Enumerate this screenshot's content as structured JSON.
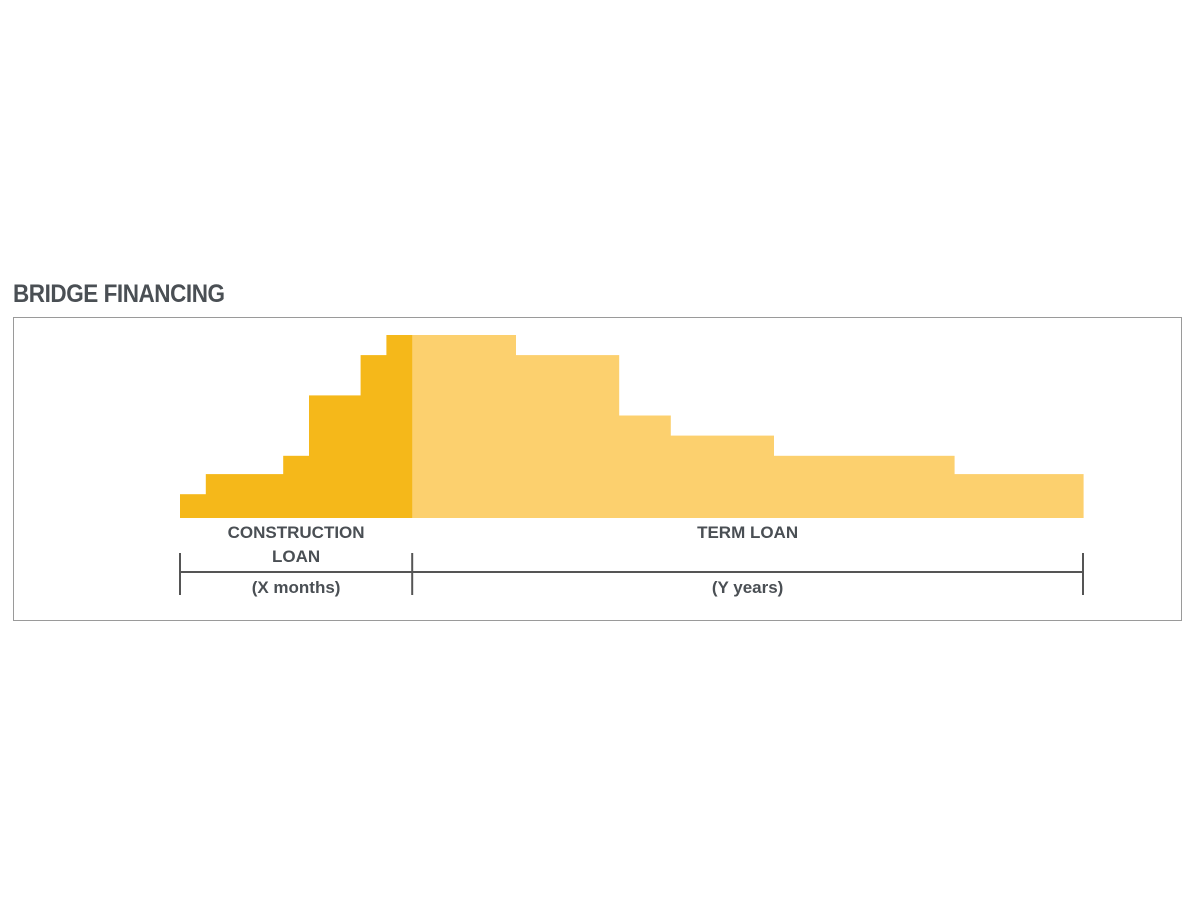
{
  "title": "BRIDGE FINANCING",
  "chart_data": {
    "type": "bar",
    "title": "BRIDGE FINANCING",
    "colors": {
      "construction": "#F5B81A",
      "term": "#FCD06E",
      "text": "#4a4f54",
      "axis": "#555555"
    },
    "segments": [
      {
        "label_lines": [
          "CONSTRUCTION",
          "LOAN"
        ],
        "duration": "(X months)",
        "steps": [
          {
            "width": 1,
            "value": 13
          },
          {
            "width": 3,
            "value": 24
          },
          {
            "width": 1,
            "value": 34
          },
          {
            "width": 2,
            "value": 67
          },
          {
            "width": 1,
            "value": 89
          },
          {
            "width": 1,
            "value": 100
          }
        ]
      },
      {
        "label_lines": [
          "TERM LOAN"
        ],
        "duration": "(Y years)",
        "steps": [
          {
            "width": 4,
            "value": 100
          },
          {
            "width": 4,
            "value": 89
          },
          {
            "width": 2,
            "value": 56
          },
          {
            "width": 4,
            "value": 45
          },
          {
            "width": 7,
            "value": 34
          },
          {
            "width": 5,
            "value": 24
          }
        ]
      }
    ],
    "ylim": [
      0,
      100
    ]
  }
}
